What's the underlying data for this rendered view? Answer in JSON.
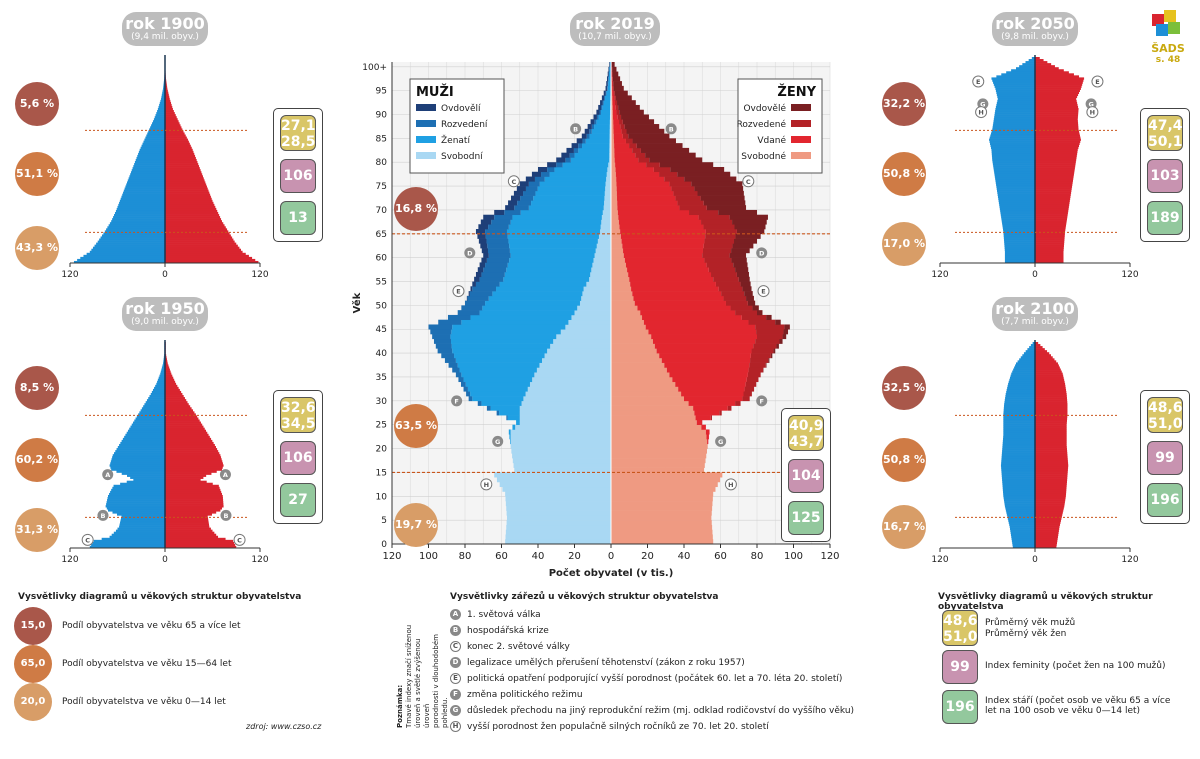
{
  "colors": {
    "male": "#1d8fd6",
    "female": "#d9242f",
    "brown": "#a9574a",
    "orange": "#cf7b45",
    "tan": "#d89d67",
    "yellow": "#d9c668",
    "pink": "#c893b0",
    "green": "#93c89d"
  },
  "logo": {
    "text": "ŠADS",
    "page": "s. 48"
  },
  "chart_data": [
    {
      "type": "bar",
      "title": "rok 1900",
      "subtitle": "(9,4 mil. obyv.)",
      "xlim": [
        -120,
        120
      ],
      "x_ticks": [
        "120",
        "0",
        "120"
      ],
      "shares": [
        "5,6 %",
        "51,1 %",
        "43,3 %"
      ],
      "avg_age": [
        "27,1",
        "28,5"
      ],
      "feminity": "106",
      "aging": "13",
      "ages": [
        0,
        5,
        10,
        15,
        20,
        25,
        30,
        35,
        40,
        45,
        50,
        55,
        60,
        65,
        70,
        75,
        80,
        85,
        90,
        95
      ],
      "male": [
        115,
        95,
        85,
        76,
        68,
        62,
        57,
        52,
        47,
        42,
        37,
        32,
        26,
        20,
        14,
        9,
        5,
        2.5,
        1,
        0.3
      ],
      "female": [
        118,
        98,
        88,
        80,
        72,
        66,
        60,
        55,
        50,
        45,
        40,
        35,
        29,
        22,
        16,
        10,
        6,
        3,
        1.2,
        0.4
      ]
    },
    {
      "type": "bar",
      "title": "rok 1950",
      "subtitle": "(9,0 mil. obyv.)",
      "xlim": [
        -120,
        120
      ],
      "x_ticks": [
        "120",
        "0",
        "120"
      ],
      "shares": [
        "8,5 %",
        "60,2 %",
        "31,3 %"
      ],
      "avg_age": [
        "32,6",
        "34,5"
      ],
      "feminity": "106",
      "aging": "27",
      "markers": [
        {
          "id": "A",
          "age": 36
        },
        {
          "id": "B",
          "age": 16
        },
        {
          "id": "C",
          "age": 4
        }
      ],
      "ages": [
        0,
        3,
        5,
        8,
        10,
        15,
        18,
        20,
        25,
        28,
        30,
        33,
        35,
        38,
        40,
        45,
        50,
        55,
        60,
        65,
        70,
        75,
        80,
        85,
        90,
        95
      ],
      "male": [
        95,
        90,
        70,
        62,
        58,
        55,
        72,
        75,
        72,
        68,
        65,
        40,
        48,
        68,
        70,
        66,
        58,
        50,
        42,
        34,
        26,
        18,
        11,
        6,
        2.5,
        0.8
      ],
      "female": [
        90,
        86,
        67,
        60,
        56,
        54,
        70,
        74,
        73,
        70,
        68,
        45,
        52,
        72,
        74,
        70,
        63,
        55,
        47,
        39,
        30,
        22,
        14,
        8,
        3.5,
        1
      ]
    },
    {
      "type": "bar",
      "title": "rok 2019",
      "subtitle": "(10,7 mil. obyv.)",
      "xlabel": "Počet obyvatel (v tis.)",
      "ylabel": "Věk",
      "xlim": [
        -120,
        120
      ],
      "x_ticks": [
        "120",
        "100",
        "80",
        "60",
        "40",
        "20",
        "0",
        "20",
        "40",
        "60",
        "80",
        "100",
        "120"
      ],
      "y_ticks": [
        "0",
        "5",
        "10",
        "15",
        "20",
        "25",
        "30",
        "35",
        "40",
        "45",
        "50",
        "55",
        "60",
        "65",
        "70",
        "75",
        "80",
        "85",
        "90",
        "95",
        "100+"
      ],
      "shares": [
        "16,8 %",
        "63,5 %",
        "19,7 %"
      ],
      "avg_age": [
        "40,9",
        "43,7"
      ],
      "feminity": "104",
      "aging": "125",
      "legend_male": {
        "title": "MUŽI",
        "items": [
          "Ovdovělí",
          "Rozvedení",
          "Ženatí",
          "Svobodní"
        ]
      },
      "legend_female": {
        "title": "ŽENY",
        "items": [
          "Ovdovělé",
          "Rozvedené",
          "Vdané",
          "Svobodné"
        ]
      },
      "markers": [
        {
          "id": "B",
          "age": 87
        },
        {
          "id": "C",
          "age": 76
        },
        {
          "id": "D",
          "age": 61
        },
        {
          "id": "E",
          "age": 53
        },
        {
          "id": "F",
          "age": 30
        },
        {
          "id": "G",
          "age": 21.5
        },
        {
          "id": "H",
          "age": 12.5
        }
      ],
      "ages": [
        0,
        5,
        10,
        14,
        15,
        20,
        23,
        25,
        28,
        30,
        35,
        40,
        43,
        45,
        48,
        50,
        53,
        55,
        60,
        65,
        68,
        70,
        75,
        78,
        80,
        85,
        90,
        95,
        100
      ],
      "male": [
        58,
        57,
        58,
        64,
        53,
        55,
        56,
        52,
        68,
        78,
        85,
        95,
        98,
        100,
        84,
        80,
        77,
        75,
        70,
        74,
        70,
        58,
        50,
        40,
        30,
        16,
        8,
        3,
        1
      ],
      "female": [
        56,
        55,
        56,
        61,
        51,
        53,
        54,
        50,
        66,
        76,
        82,
        90,
        96,
        98,
        83,
        79,
        77,
        76,
        74,
        84,
        86,
        74,
        72,
        62,
        50,
        32,
        18,
        7,
        2
      ],
      "male_single": [
        58,
        57,
        58,
        64,
        53,
        55,
        55,
        50,
        50,
        48,
        42,
        35,
        30,
        25,
        20,
        17,
        15,
        12,
        9,
        6,
        5,
        4,
        3,
        2,
        1,
        0.8,
        0.5,
        0.2,
        0.1
      ],
      "male_married": [
        0,
        0,
        0,
        0,
        0,
        0,
        1,
        2,
        16,
        28,
        40,
        52,
        58,
        62,
        52,
        52,
        48,
        47,
        46,
        51,
        49,
        41,
        36,
        29,
        21,
        11,
        5,
        1.6,
        0.5
      ],
      "male_divorced": [
        0,
        0,
        0,
        0,
        0,
        0,
        0,
        0,
        2,
        2,
        3,
        8,
        10,
        13,
        12,
        11,
        13,
        13,
        12,
        12,
        10,
        8,
        6,
        4,
        3,
        1.5,
        0.8,
        0.3,
        0.1
      ],
      "female_single": [
        56,
        55,
        56,
        61,
        51,
        53,
        52,
        47,
        45,
        40,
        32,
        25,
        22,
        19,
        16,
        13,
        11,
        10,
        7,
        5,
        4,
        3.5,
        3,
        2.5,
        2,
        1.5,
        1,
        0.5,
        0.2
      ],
      "female_married": [
        0,
        0,
        0,
        0,
        0,
        0,
        2,
        3,
        19,
        32,
        43,
        52,
        58,
        60,
        52,
        50,
        48,
        46,
        43,
        47,
        44,
        34,
        29,
        21,
        13,
        5,
        2,
        0.5,
        0.1
      ],
      "female_divorced": [
        0,
        0,
        0,
        0,
        0,
        0,
        0,
        0,
        2,
        4,
        7,
        12,
        14,
        16,
        12,
        12,
        13,
        14,
        15,
        17,
        17,
        15,
        12,
        9,
        6,
        3,
        1.5,
        0.5,
        0.1
      ],
      "female_widowed": [
        0,
        0,
        0,
        0,
        0,
        0,
        0,
        0,
        0,
        0,
        0,
        1,
        2,
        3,
        3,
        4,
        5,
        6,
        9,
        15,
        21,
        21.5,
        28,
        29.5,
        29,
        22.5,
        13.5,
        5.5,
        1.6
      ]
    },
    {
      "type": "bar",
      "title": "rok 2050",
      "subtitle": "(9,8 mil. obyv.)",
      "xlim": [
        -120,
        120
      ],
      "x_ticks": [
        "120",
        "0",
        "120"
      ],
      "shares": [
        "32,2 %",
        "50,8 %",
        "17,0 %"
      ],
      "avg_age": [
        "47,4",
        "50,1"
      ],
      "feminity": "103",
      "aging": "189",
      "markers": [
        {
          "id": "E",
          "age": 89
        },
        {
          "id": "G",
          "age": 78
        },
        {
          "id": "H",
          "age": 74
        }
      ],
      "ages": [
        0,
        5,
        10,
        15,
        20,
        25,
        30,
        35,
        40,
        45,
        50,
        55,
        60,
        65,
        70,
        75,
        80,
        85,
        90,
        95,
        100
      ],
      "male": [
        38,
        38,
        39,
        40,
        42,
        44,
        46,
        48,
        50,
        52,
        54,
        55,
        58,
        54,
        52,
        50,
        47,
        50,
        55,
        24,
        4
      ],
      "female": [
        36,
        36,
        37,
        38,
        40,
        42,
        44,
        46,
        48,
        50,
        52,
        54,
        58,
        55,
        54,
        55,
        52,
        58,
        62,
        30,
        6
      ]
    },
    {
      "type": "bar",
      "title": "rok 2100",
      "subtitle": "(7,7 mil. obyv.)",
      "xlim": [
        -120,
        120
      ],
      "x_ticks": [
        "120",
        "0",
        "120"
      ],
      "shares": [
        "32,5 %",
        "50,8 %",
        "16,7 %"
      ],
      "avg_age": [
        "48,6",
        "51,0"
      ],
      "feminity": "99",
      "aging": "196",
      "ages": [
        0,
        5,
        10,
        15,
        20,
        25,
        30,
        35,
        40,
        45,
        50,
        55,
        60,
        65,
        70,
        75,
        80,
        85,
        90,
        95,
        100
      ],
      "male": [
        28,
        30,
        32,
        35,
        38,
        40,
        41,
        42,
        43,
        42,
        41,
        40,
        40,
        40,
        39,
        37,
        34,
        30,
        24,
        14,
        3
      ],
      "female": [
        27,
        29,
        31,
        34,
        37,
        39,
        40,
        41,
        42,
        41,
        40,
        40,
        40,
        41,
        41,
        40,
        38,
        35,
        29,
        18,
        4
      ]
    }
  ],
  "legend_structure": {
    "title": "Vysvětlivky diagramů u věkových struktur obyvatelstva",
    "items": [
      {
        "value": "15,0 %",
        "label": "Podíl obyvatelstva ve věku 65 a více let"
      },
      {
        "value": "65,0 %",
        "label": "Podíl obyvatelstva ve věku 15—64 let"
      },
      {
        "value": "20,0 %",
        "label": "Podíl obyvatelstva ve věku 0—14 let"
      }
    ],
    "source": "zdroj: www.czso.cz"
  },
  "legend_notches": {
    "title": "Vysvětlivky zářezů u věkových struktur obyvatelstva",
    "note_title": "Poznámka:",
    "note_text": [
      "Tmavé indexy značí sníženou",
      "úroveň a světlé zvýšenou úroveň",
      "porodnosti v dlouhodobém pohledu."
    ],
    "items": [
      {
        "id": "A",
        "label": "1. světová válka"
      },
      {
        "id": "B",
        "label": "hospodářská krize"
      },
      {
        "id": "C",
        "label": "konec 2. světové války"
      },
      {
        "id": "D",
        "label": "legalizace umělých přerušení těhotenství (zákon z roku 1957)"
      },
      {
        "id": "E",
        "label": "politická opatření podporující vyšší porodnost (počátek 60. let a 70. léta 20. století)"
      },
      {
        "id": "F",
        "label": "změna politického režimu"
      },
      {
        "id": "G",
        "label": "důsledek přechodu na jiný reprodukční režim (mj. odklad rodičovství do vyššího věku)"
      },
      {
        "id": "H",
        "label": "vyšší porodnost žen populačně silných ročníků ze 70. let 20. století"
      }
    ]
  },
  "legend_indices": {
    "title": "Vysvětlivky diagramů u věkových struktur obyvatelstva",
    "avg": [
      "48,6",
      "51,0"
    ],
    "avg_labels": [
      "Průměrný věk mužů",
      "Průměrný věk žen"
    ],
    "fem": "99",
    "fem_label": "Index feminity (počet žen na 100 mužů)",
    "aging": "196",
    "aging_label": "Index stáří (počet osob ve věku 65 a více let na 100 osob ve věku 0—14 let)"
  }
}
